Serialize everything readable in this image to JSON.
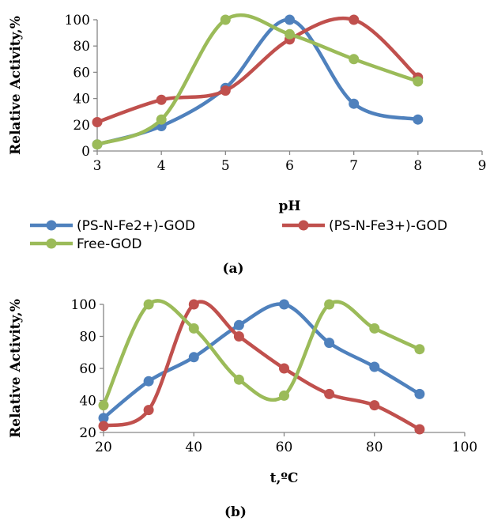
{
  "chart_data": [
    {
      "id": "a",
      "type": "line",
      "caption": "(a)",
      "xlabel": "pH",
      "ylabel": "Relative Activity,%",
      "xlim": [
        3,
        9
      ],
      "ylim": [
        0,
        100
      ],
      "xticks": [
        3,
        4,
        5,
        6,
        7,
        8,
        9
      ],
      "yticks": [
        0,
        20,
        40,
        60,
        80,
        100
      ],
      "grid": false,
      "legend": "bottom",
      "series": [
        {
          "name": "(PS-N-Fe2+)-GOD",
          "color": "#4f81bd",
          "x": [
            3,
            4,
            5,
            6,
            7,
            8
          ],
          "y": [
            5,
            19,
            48,
            100,
            36,
            24
          ]
        },
        {
          "name": "(PS-N-Fe3+)-GOD",
          "color": "#c0504d",
          "x": [
            3,
            4,
            5,
            6,
            7,
            8
          ],
          "y": [
            22,
            39,
            46,
            85,
            100,
            56
          ]
        },
        {
          "name": "Free-GOD",
          "color": "#9bbb59",
          "x": [
            3,
            4,
            5,
            6,
            7,
            8
          ],
          "y": [
            5,
            24,
            100,
            89,
            70,
            53
          ]
        }
      ]
    },
    {
      "id": "b",
      "type": "line",
      "caption": "(b)",
      "xlabel": "t,ºC",
      "ylabel": "Relative Activity,%",
      "xlim": [
        20,
        100
      ],
      "ylim": [
        20,
        100
      ],
      "xticks": [
        20,
        40,
        60,
        80,
        100
      ],
      "yticks": [
        20,
        40,
        60,
        80,
        100
      ],
      "grid": false,
      "legend": "none",
      "series": [
        {
          "color": "#4f81bd",
          "x": [
            20,
            30,
            40,
            50,
            60,
            70,
            80,
            90
          ],
          "y": [
            29,
            52,
            67,
            87,
            100,
            76,
            61,
            44
          ]
        },
        {
          "color": "#c0504d",
          "x": [
            20,
            30,
            40,
            50,
            60,
            70,
            80,
            90
          ],
          "y": [
            24,
            34,
            100,
            80,
            60,
            44,
            37,
            22
          ]
        },
        {
          "color": "#9bbb59",
          "x": [
            20,
            30,
            40,
            50,
            60,
            70,
            80,
            90
          ],
          "y": [
            37,
            100,
            85,
            53,
            43,
            100,
            85,
            72
          ]
        }
      ]
    }
  ]
}
